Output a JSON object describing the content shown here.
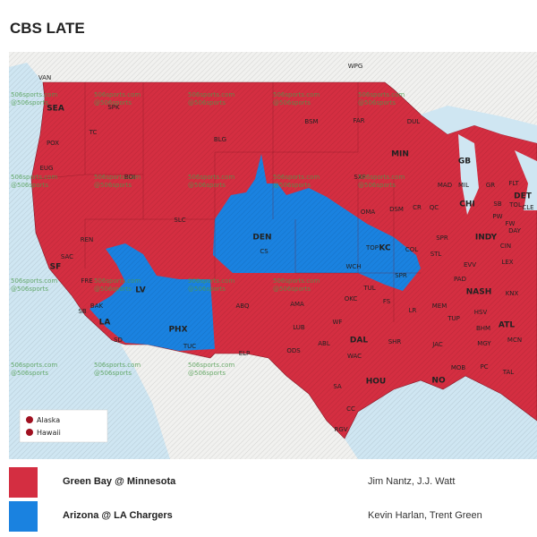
{
  "header": {
    "title": "CBS LATE"
  },
  "map": {
    "watermark": [
      "506sports.com",
      "@506sports"
    ],
    "inset_legend": [
      "Alaska",
      "Hawaii"
    ],
    "cities": [
      "VAN",
      "WPG",
      "SEA",
      "SPK",
      "TC",
      "POX",
      "BLG",
      "BSM",
      "FAR",
      "DUL",
      "MIN",
      "GB",
      "EUG",
      "BOI",
      "SXF",
      "MAD",
      "MIL",
      "GR",
      "FLT",
      "DET",
      "SLC",
      "OMA",
      "DSM",
      "CR",
      "QC",
      "CHI",
      "SB",
      "PW",
      "TOL",
      "CLE",
      "FW",
      "REN",
      "DEN",
      "CS",
      "TOP",
      "KC",
      "COL",
      "SPR",
      "INDY",
      "DAY",
      "CIN",
      "SAC",
      "SF",
      "LV",
      "FRE",
      "WCH",
      "SPR",
      "STL",
      "EVV",
      "LEX",
      "PAD",
      "NASH",
      "KNX",
      "BAK",
      "SB",
      "LA",
      "SD",
      "PHX",
      "TUC",
      "ABQ",
      "AMA",
      "OKC",
      "TUL",
      "FS",
      "LR",
      "MEM",
      "TUP",
      "HSV",
      "ATL",
      "BHM",
      "LUB",
      "WF",
      "ELP",
      "DAL",
      "SHR",
      "JAC",
      "MGY",
      "MCN",
      "ODS",
      "ABL",
      "WAC",
      "MOB",
      "PC",
      "TAL",
      "HOU",
      "NO",
      "SA",
      "CC",
      "RGV"
    ]
  },
  "games": [
    {
      "matchup": "Green Bay @ Minnesota",
      "announcers": "Jim Nantz, J.J. Watt",
      "color": "#d42e41"
    },
    {
      "matchup": "Arizona @ LA Chargers",
      "announcers": "Kevin Harlan, Trent Green",
      "color": "#1a82e0"
    }
  ]
}
